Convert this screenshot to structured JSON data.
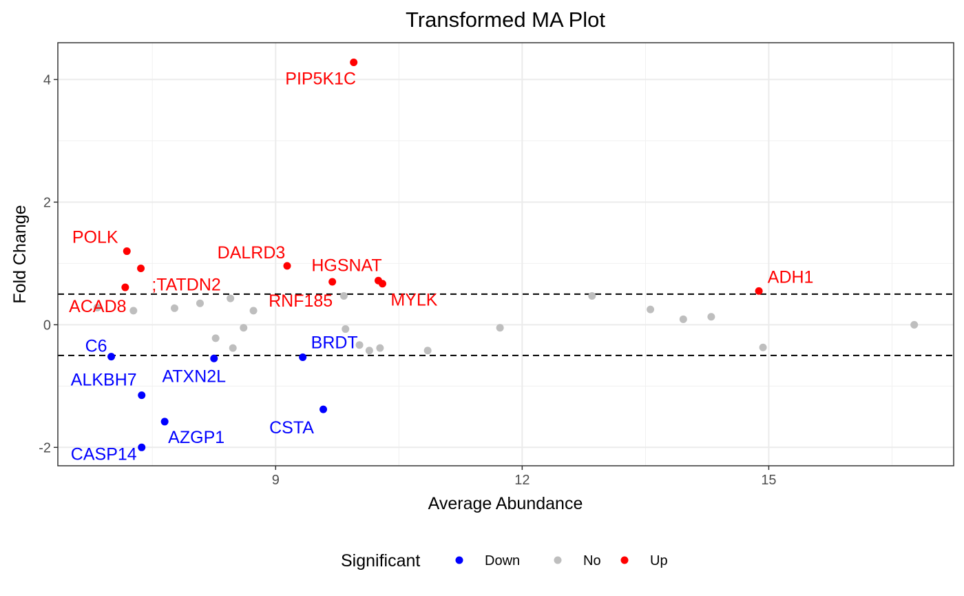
{
  "chart_data": {
    "type": "scatter",
    "title": "Transformed MA Plot",
    "xlabel": "Average Abundance",
    "ylabel": "Fold Change",
    "xlim": [
      6.35,
      17.25
    ],
    "ylim": [
      -2.3,
      4.6
    ],
    "x_ticks": [
      9,
      12,
      15
    ],
    "x_tick_labels": [
      "9",
      "12",
      "15"
    ],
    "y_ticks": [
      -2,
      0,
      2,
      4
    ],
    "y_tick_labels": [
      "-2",
      "0",
      "2",
      "4"
    ],
    "x_minor_ticks": [
      7.5,
      10.5,
      13.5,
      16.5
    ],
    "y_minor_ticks": [
      -1,
      1,
      3
    ],
    "grid": true,
    "threshold_lines": [
      0.5,
      -0.5
    ],
    "colors": {
      "Down": "#0000ff",
      "No": "#bebebe",
      "Up": "#ff0000"
    },
    "legend": {
      "title": "Significant",
      "position": "bottom",
      "entries": [
        "Down",
        "No",
        "Up"
      ]
    },
    "series": [
      {
        "name": "Down",
        "points": [
          {
            "x": 7.0,
            "y": -0.52,
            "label": "C6"
          },
          {
            "x": 7.37,
            "y": -1.15,
            "label": "ALKBH7"
          },
          {
            "x": 7.65,
            "y": -1.58,
            "label": "AZGP1"
          },
          {
            "x": 7.37,
            "y": -2.0,
            "label": "CASP14"
          },
          {
            "x": 8.25,
            "y": -0.55,
            "label": "ATXN2L"
          },
          {
            "x": 9.33,
            "y": -0.53,
            "label": "BRDT"
          },
          {
            "x": 9.58,
            "y": -1.38,
            "label": "CSTA"
          }
        ]
      },
      {
        "name": "No",
        "points": [
          {
            "x": 6.83,
            "y": 0.28
          },
          {
            "x": 7.27,
            "y": 0.23
          },
          {
            "x": 7.77,
            "y": 0.27
          },
          {
            "x": 8.08,
            "y": 0.35
          },
          {
            "x": 8.45,
            "y": 0.43
          },
          {
            "x": 8.27,
            "y": -0.22
          },
          {
            "x": 8.48,
            "y": -0.38
          },
          {
            "x": 8.61,
            "y": -0.05
          },
          {
            "x": 8.73,
            "y": 0.23
          },
          {
            "x": 9.83,
            "y": 0.47
          },
          {
            "x": 9.85,
            "y": -0.07
          },
          {
            "x": 10.02,
            "y": -0.33
          },
          {
            "x": 10.14,
            "y": -0.42
          },
          {
            "x": 10.27,
            "y": -0.38
          },
          {
            "x": 10.85,
            "y": -0.42
          },
          {
            "x": 11.73,
            "y": -0.05
          },
          {
            "x": 12.85,
            "y": 0.47
          },
          {
            "x": 13.56,
            "y": 0.25
          },
          {
            "x": 13.96,
            "y": 0.09
          },
          {
            "x": 14.3,
            "y": 0.13
          },
          {
            "x": 14.93,
            "y": -0.37
          },
          {
            "x": 16.77,
            "y": 0.0
          }
        ]
      },
      {
        "name": "Up",
        "points": [
          {
            "x": 9.95,
            "y": 4.28,
            "label": "PIP5K1C"
          },
          {
            "x": 7.19,
            "y": 1.2,
            "label": "POLK"
          },
          {
            "x": 7.36,
            "y": 0.92,
            "label": ";TATDN2"
          },
          {
            "x": 7.17,
            "y": 0.61,
            "label": "ACAD8"
          },
          {
            "x": 9.14,
            "y": 0.96,
            "label": "DALRD3"
          },
          {
            "x": 9.69,
            "y": 0.7,
            "label": "RNF185"
          },
          {
            "x": 10.25,
            "y": 0.72,
            "label": "HGSNAT"
          },
          {
            "x": 10.3,
            "y": 0.67,
            "label": "MYLK"
          },
          {
            "x": 14.88,
            "y": 0.55,
            "label": "ADH1"
          }
        ]
      }
    ]
  }
}
